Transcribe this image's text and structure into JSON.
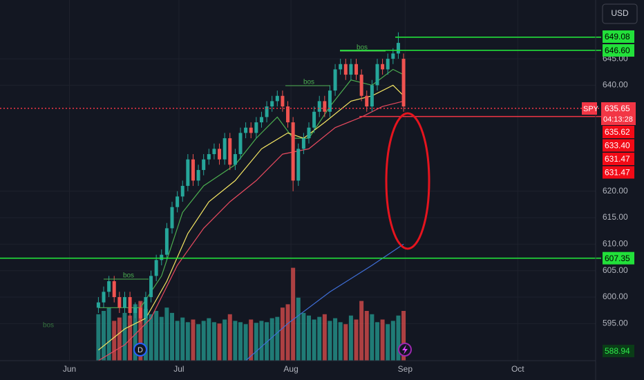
{
  "chart_data": {
    "type": "candlestick",
    "symbol": "SPY",
    "currency": "USD",
    "countdown": "04:13:28",
    "up_color": "#26a69a",
    "down_color": "#ef5350",
    "open": [
      598,
      599,
      601,
      603,
      600,
      598,
      600,
      597,
      598,
      596,
      600,
      604,
      607,
      608,
      613,
      617,
      619,
      621,
      626,
      622,
      624,
      626,
      627,
      628,
      626,
      630,
      625,
      627,
      631,
      632,
      631,
      633,
      634,
      636,
      637,
      638,
      636,
      633,
      622,
      628,
      630,
      632,
      635,
      637,
      635,
      639,
      643,
      644,
      642,
      644,
      642,
      638,
      636,
      640,
      644,
      643,
      645,
      646,
      645
    ],
    "high": [
      600,
      602,
      604,
      604,
      601,
      601,
      601,
      599,
      599,
      601,
      605,
      608,
      609,
      614,
      618,
      620,
      622,
      627,
      627,
      625,
      627,
      628,
      629,
      629,
      631,
      631,
      628,
      632,
      633,
      633,
      634,
      635,
      637,
      638,
      639,
      639,
      637,
      634,
      629,
      631,
      633,
      636,
      638,
      638,
      640,
      644,
      645,
      645,
      645,
      645,
      643,
      639,
      641,
      645,
      645,
      646,
      647,
      650,
      646
    ],
    "low": [
      597,
      598,
      600,
      599,
      597,
      597,
      596,
      596,
      595,
      595,
      599,
      603,
      606,
      607,
      612,
      616,
      618,
      620,
      621,
      621,
      623,
      625,
      626,
      625,
      625,
      624,
      624,
      626,
      630,
      630,
      630,
      632,
      633,
      635,
      636,
      635,
      632,
      620,
      621,
      627,
      629,
      631,
      634,
      634,
      634,
      638,
      642,
      641,
      641,
      641,
      637,
      635,
      635,
      639,
      642,
      642,
      644,
      645,
      635
    ],
    "close": [
      599,
      601,
      603,
      600,
      598,
      600,
      597,
      598,
      596,
      600,
      604,
      607,
      608,
      613,
      617,
      619,
      621,
      626,
      622,
      624,
      626,
      627,
      628,
      626,
      630,
      625,
      627,
      631,
      632,
      631,
      633,
      634,
      636,
      637,
      638,
      636,
      633,
      622,
      628,
      630,
      632,
      635,
      637,
      635,
      639,
      643,
      644,
      642,
      644,
      642,
      638,
      636,
      640,
      644,
      643,
      645,
      646,
      648,
      636
    ],
    "volume": [
      70,
      75,
      80,
      60,
      65,
      72,
      68,
      85,
      90,
      78,
      70,
      75,
      66,
      80,
      72,
      60,
      65,
      58,
      62,
      55,
      60,
      64,
      58,
      56,
      62,
      70,
      60,
      58,
      55,
      62,
      57,
      60,
      58,
      64,
      66,
      80,
      85,
      140,
      95,
      72,
      68,
      62,
      66,
      70,
      60,
      64,
      58,
      55,
      68,
      62,
      90,
      75,
      70,
      58,
      62,
      55,
      60,
      68,
      75
    ],
    "volume_lim": [
      0,
      200
    ],
    "xlim": [
      -18.7,
      94.5
    ],
    "xticks": [
      {
        "value": -5.5,
        "label": "Jun"
      },
      {
        "value": 15.3,
        "label": "Jul"
      },
      {
        "value": 36.6,
        "label": "Aug"
      },
      {
        "value": 58.3,
        "label": "Sep"
      },
      {
        "value": 79.7,
        "label": "Oct"
      }
    ],
    "ylim": [
      588,
      656.1
    ],
    "yticks": [
      {
        "value": 595,
        "label": "595.00"
      },
      {
        "value": 600,
        "label": "600.00"
      },
      {
        "value": 605,
        "label": "605.00"
      },
      {
        "value": 610,
        "label": "610.00"
      },
      {
        "value": 615,
        "label": "615.00"
      },
      {
        "value": 620,
        "label": "620.00"
      },
      {
        "value": 640,
        "label": "640.00"
      },
      {
        "value": 645,
        "label": "645.00"
      }
    ],
    "grid": true,
    "moving_averages": [
      {
        "color": "#4caf50",
        "x": [
          0,
          8,
          12,
          16,
          20,
          26,
          30,
          34,
          37,
          40,
          44,
          48,
          52,
          56,
          58
        ],
        "values": [
          598,
          598,
          604,
          616,
          621,
          625,
          630,
          634,
          630,
          630,
          636,
          641,
          640,
          643,
          642
        ]
      },
      {
        "color": "#f5e663",
        "x": [
          0,
          5,
          9,
          13,
          17,
          21,
          26,
          31,
          36,
          39,
          43,
          48,
          52,
          56,
          58
        ],
        "values": [
          590,
          594,
          596,
          603,
          612,
          618,
          622,
          628,
          631,
          630,
          633,
          637,
          638,
          640,
          638
        ]
      },
      {
        "color": "#e84a5f",
        "x": [
          0,
          5,
          10,
          15,
          20,
          25,
          30,
          35,
          40,
          45,
          50,
          54,
          58
        ],
        "values": [
          588,
          591,
          596,
          606,
          613,
          618,
          622,
          627,
          628,
          632,
          634,
          636,
          637
        ]
      },
      {
        "color": "#3f6fd8",
        "x": [
          28,
          36,
          44,
          52,
          58
        ],
        "values": [
          588,
          595,
          601,
          606,
          610
        ]
      }
    ],
    "levels": [
      {
        "value": 649.08,
        "color": "#22e03a"
      },
      {
        "value": 646.6,
        "label": "646.60",
        "color": "#22e03a"
      },
      {
        "value": 635.65,
        "color": "#f23645"
      },
      {
        "value": 634.1,
        "color": "#f23645"
      },
      {
        "value": 607.35,
        "color": "#22e03a"
      }
    ],
    "order_labels": [
      {
        "value": 635.62
      },
      {
        "value": 633.4,
        "label": "633.40"
      },
      {
        "value": 631.47
      },
      {
        "value": 631.47
      }
    ],
    "low_label": 588.94,
    "annotations": [
      "bos",
      "bos",
      "bos",
      "bos"
    ],
    "marker": "D"
  }
}
